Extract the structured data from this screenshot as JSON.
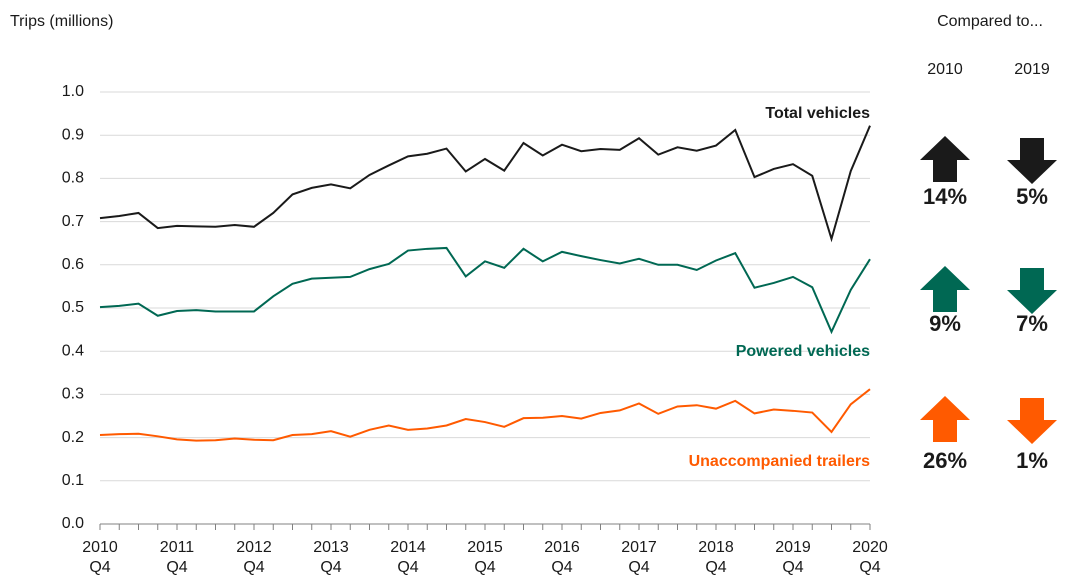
{
  "chart_data": {
    "type": "line",
    "y_label": "Trips (millions)",
    "categories": [
      "2010 Q4",
      null,
      null,
      null,
      "2011 Q4",
      null,
      null,
      null,
      "2012 Q4",
      null,
      null,
      null,
      "2013 Q4",
      null,
      null,
      null,
      "2014 Q4",
      null,
      null,
      null,
      "2015 Q4",
      null,
      null,
      null,
      "2016 Q4",
      null,
      null,
      null,
      "2017 Q4",
      null,
      null,
      null,
      "2018 Q4",
      null,
      null,
      null,
      "2019 Q4",
      null,
      null,
      null,
      "2020 Q4"
    ],
    "ylim": [
      0,
      1
    ],
    "yticks": [
      {
        "value": 0,
        "label": "0.0"
      },
      0.1,
      0.2,
      0.3,
      0.4,
      0.5,
      0.6,
      0.7,
      0.8,
      0.9,
      {
        "value": 1,
        "label": "1.0"
      }
    ],
    "grid": true,
    "series": [
      {
        "name": "Total vehicles",
        "color": "#1a1a1a",
        "values": [
          0.708,
          0.713,
          0.72,
          0.685,
          0.69,
          0.689,
          0.688,
          0.692,
          0.688,
          0.72,
          0.763,
          0.778,
          0.786,
          0.777,
          0.808,
          0.83,
          0.851,
          0.857,
          0.869,
          0.816,
          0.845,
          0.818,
          0.882,
          0.853,
          0.878,
          0.863,
          0.868,
          0.866,
          0.893,
          0.855,
          0.872,
          0.864,
          0.876,
          0.912,
          0.803,
          0.822,
          0.833,
          0.806,
          0.66,
          0.817,
          0.922
        ]
      },
      {
        "name": "Powered vehicles",
        "color": "#006853",
        "values": [
          0.502,
          0.505,
          0.51,
          0.482,
          0.493,
          0.495,
          0.492,
          0.492,
          0.492,
          0.527,
          0.556,
          0.568,
          0.57,
          0.572,
          0.59,
          0.602,
          0.633,
          0.637,
          0.639,
          0.573,
          0.608,
          0.593,
          0.637,
          0.608,
          0.63,
          0.62,
          0.611,
          0.603,
          0.614,
          0.6,
          0.6,
          0.588,
          0.61,
          0.627,
          0.547,
          0.558,
          0.572,
          0.548,
          0.445,
          0.542,
          0.613
        ]
      },
      {
        "name": "Unaccompanied trailers",
        "color": "#ff5a00",
        "values": [
          0.206,
          0.208,
          0.209,
          0.203,
          0.196,
          0.193,
          0.194,
          0.198,
          0.195,
          0.194,
          0.206,
          0.208,
          0.215,
          0.202,
          0.218,
          0.228,
          0.218,
          0.221,
          0.228,
          0.243,
          0.236,
          0.225,
          0.245,
          0.246,
          0.25,
          0.244,
          0.257,
          0.263,
          0.279,
          0.255,
          0.272,
          0.275,
          0.267,
          0.285,
          0.256,
          0.265,
          0.262,
          0.258,
          0.213,
          0.277,
          0.312
        ]
      }
    ]
  },
  "comparison": {
    "title": "Compared to...",
    "columns": [
      "2010",
      "2019"
    ],
    "rows": [
      {
        "color": "#1a1a1a",
        "directions": [
          "up",
          "down"
        ],
        "values": [
          14,
          5
        ],
        "value_labels": [
          "14%",
          "5%"
        ]
      },
      {
        "color": "#006853",
        "directions": [
          "up",
          "down"
        ],
        "values": [
          9,
          7
        ],
        "value_labels": [
          "9%",
          "7%"
        ]
      },
      {
        "color": "#ff5a00",
        "directions": [
          "up",
          "down"
        ],
        "values": [
          26,
          1
        ],
        "value_labels": [
          "26%",
          "1%"
        ]
      }
    ]
  }
}
